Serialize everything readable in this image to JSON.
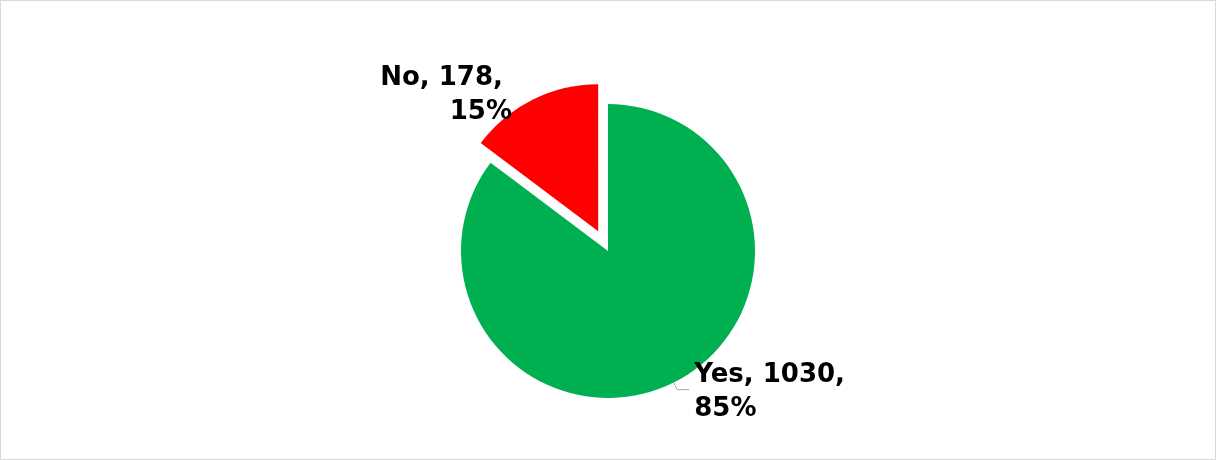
{
  "chart_data": {
    "type": "pie",
    "categories": [
      "Yes",
      "No"
    ],
    "values": [
      1030,
      178
    ],
    "colors": [
      "#00b050",
      "#ff0000"
    ],
    "value_labels": [
      "1030, 85%",
      "178, 15%"
    ],
    "legend": false
  }
}
